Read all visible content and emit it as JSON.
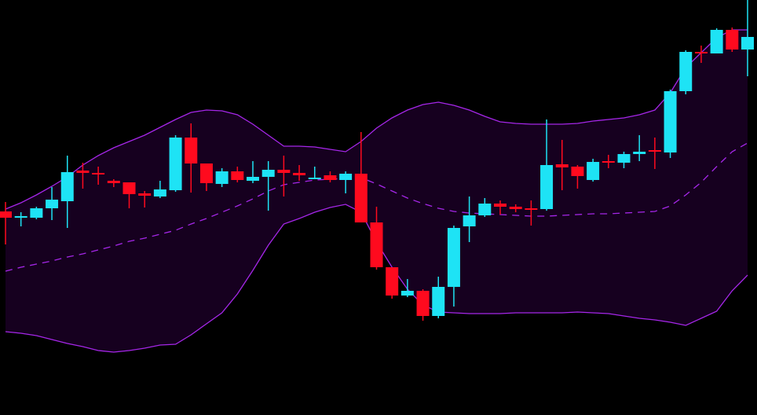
{
  "chart_data": {
    "type": "candlestick",
    "ylim": [
      0,
      528
    ],
    "up_color": "#1ee3f5",
    "down_color": "#ff0a1e",
    "band_color": "#a526e8",
    "band_fill": "#16001f",
    "open": [
      259,
      251,
      251,
      263,
      272,
      311,
      308,
      298,
      296,
      282,
      278,
      286,
      353,
      320,
      294,
      310,
      298,
      303,
      312,
      308,
      301,
      305,
      299,
      307,
      245,
      188,
      152,
      158,
      126,
      163,
      240,
      254,
      269,
      265,
      263,
      262,
      319,
      316,
      299,
      323,
      321,
      332,
      337,
      334,
      412,
      462,
      460,
      490,
      465
    ],
    "high": [
      271,
      258,
      265,
      290,
      330,
      321,
      316,
      300,
      296,
      285,
      298,
      356,
      371,
      320,
      314,
      316,
      323,
      323,
      330,
      318,
      316,
      310,
      310,
      360,
      265,
      188,
      173,
      160,
      176,
      241,
      278,
      276,
      273,
      268,
      273,
      376,
      350,
      318,
      326,
      331,
      335,
      356,
      353,
      414,
      464,
      470,
      492,
      493,
      528
    ],
    "low": [
      217,
      240,
      249,
      248,
      238,
      288,
      293,
      290,
      263,
      264,
      276,
      284,
      283,
      285,
      290,
      296,
      295,
      260,
      278,
      298,
      300,
      296,
      282,
      245,
      185,
      148,
      150,
      120,
      123,
      138,
      220,
      252,
      255,
      258,
      241,
      260,
      286,
      288,
      297,
      314,
      314,
      323,
      313,
      327,
      408,
      448,
      460,
      462,
      431
    ],
    "close": [
      251,
      253,
      263,
      274,
      309,
      308,
      306,
      295,
      281,
      279,
      287,
      353,
      320,
      295,
      310,
      299,
      303,
      312,
      308,
      305,
      302,
      299,
      307,
      245,
      188,
      152,
      158,
      126,
      163,
      238,
      254,
      269,
      265,
      262,
      261,
      318,
      315,
      304,
      322,
      321,
      332,
      335,
      336,
      412,
      462,
      460,
      490,
      465,
      481
    ],
    "bands": [
      {
        "name": "upper",
        "values": [
          262,
          270,
          280,
          291,
          303,
          318,
          330,
          340,
          348,
          356,
          366,
          376,
          385,
          388,
          387,
          382,
          370,
          356,
          342,
          342,
          341,
          338,
          335,
          348,
          365,
          378,
          388,
          395,
          398,
          394,
          388,
          380,
          373,
          371,
          370,
          370,
          370,
          371,
          374,
          376,
          378,
          382,
          388,
          410,
          442,
          461,
          480,
          490,
          490
        ]
      },
      {
        "name": "middle",
        "values": [
          183,
          188,
          192,
          196,
          201,
          205,
          210,
          215,
          221,
          225,
          230,
          235,
          243,
          250,
          258,
          266,
          275,
          285,
          293,
          296,
          299,
          300,
          301,
          302,
          294,
          285,
          276,
          269,
          263,
          259,
          257,
          256,
          255,
          254,
          253,
          253,
          254,
          255,
          256,
          256,
          257,
          258,
          259,
          266,
          280,
          296,
          316,
          335,
          346
        ],
        "dashed": true
      },
      {
        "name": "lower",
        "values": [
          106,
          104,
          101,
          96,
          91,
          87,
          82,
          80,
          82,
          85,
          89,
          90,
          102,
          116,
          130,
          154,
          184,
          216,
          243,
          250,
          258,
          264,
          268,
          258,
          220,
          188,
          160,
          140,
          131,
          130,
          129,
          129,
          129,
          130,
          130,
          130,
          130,
          131,
          130,
          129,
          126,
          123,
          121,
          118,
          114,
          123,
          132,
          158,
          178
        ]
      }
    ]
  }
}
